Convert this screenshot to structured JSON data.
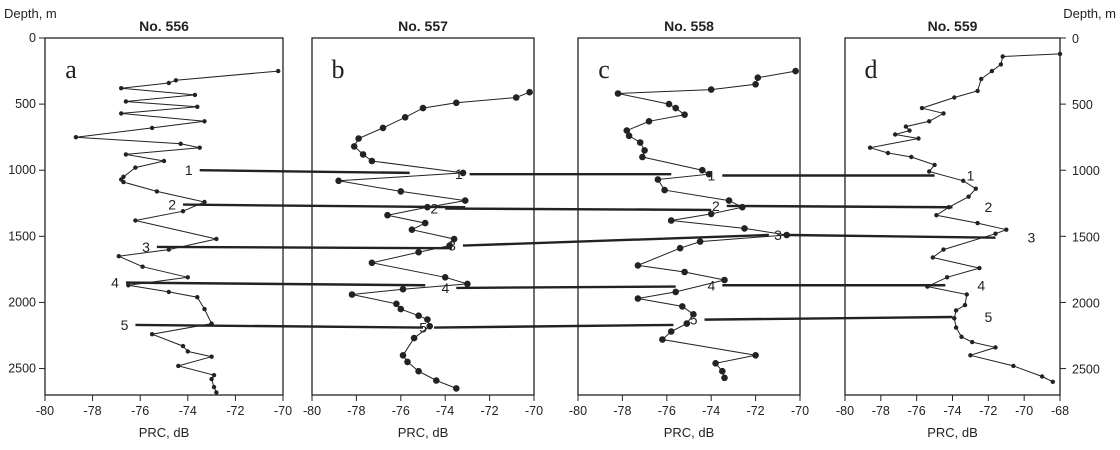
{
  "chart_data": {
    "type": "line",
    "y_axis": {
      "label": "Depth, m",
      "range": [
        0,
        2700
      ],
      "ticks": [
        0,
        500,
        1000,
        1500,
        2000,
        2500
      ],
      "inverted": true
    },
    "x_axis_label": "PRC, dB",
    "panels": [
      {
        "title": "No. 556",
        "letter": "a",
        "xlim": [
          -80,
          -70
        ],
        "xticks": [
          -80,
          -78,
          -76,
          -74,
          -72,
          -70
        ],
        "markers": "small",
        "points": [
          [
            -70.2,
            250
          ],
          [
            -74.5,
            320
          ],
          [
            -74.8,
            340
          ],
          [
            -76.8,
            380
          ],
          [
            -73.7,
            430
          ],
          [
            -76.6,
            480
          ],
          [
            -73.6,
            520
          ],
          [
            -76.8,
            570
          ],
          [
            -73.3,
            630
          ],
          [
            -75.5,
            680
          ],
          [
            -78.7,
            750
          ],
          [
            -74.3,
            800
          ],
          [
            -73.5,
            830
          ],
          [
            -76.6,
            880
          ],
          [
            -75.0,
            930
          ],
          [
            -76.2,
            980
          ],
          [
            -76.7,
            1050
          ],
          [
            -76.8,
            1070
          ],
          [
            -76.7,
            1090
          ],
          [
            -75.3,
            1160
          ],
          [
            -73.3,
            1240
          ],
          [
            -74.2,
            1310
          ],
          [
            -76.2,
            1380
          ],
          [
            -72.8,
            1520
          ],
          [
            -74.8,
            1600
          ],
          [
            -76.9,
            1650
          ],
          [
            -75.9,
            1730
          ],
          [
            -74.0,
            1810
          ],
          [
            -76.5,
            1870
          ],
          [
            -74.8,
            1920
          ],
          [
            -73.6,
            1960
          ],
          [
            -73.3,
            2050
          ],
          [
            -73.0,
            2160
          ],
          [
            -75.5,
            2240
          ],
          [
            -74.2,
            2330
          ],
          [
            -74.0,
            2370
          ],
          [
            -73.0,
            2410
          ],
          [
            -74.4,
            2480
          ],
          [
            -72.9,
            2550
          ],
          [
            -73.0,
            2580
          ],
          [
            -72.9,
            2640
          ],
          [
            -72.8,
            2680
          ]
        ]
      },
      {
        "title": "No. 557",
        "letter": "b",
        "xlim": [
          -80,
          -70
        ],
        "xticks": [
          -80,
          -78,
          -76,
          -74,
          -72,
          -70
        ],
        "markers": "large",
        "points": [
          [
            -70.2,
            410
          ],
          [
            -70.8,
            450
          ],
          [
            -73.5,
            490
          ],
          [
            -75.0,
            530
          ],
          [
            -75.8,
            600
          ],
          [
            -76.8,
            680
          ],
          [
            -77.9,
            760
          ],
          [
            -78.1,
            820
          ],
          [
            -77.7,
            880
          ],
          [
            -77.3,
            930
          ],
          [
            -73.2,
            1020
          ],
          [
            -78.8,
            1080
          ],
          [
            -76.0,
            1160
          ],
          [
            -73.1,
            1230
          ],
          [
            -74.8,
            1280
          ],
          [
            -76.6,
            1340
          ],
          [
            -74.9,
            1400
          ],
          [
            -75.5,
            1450
          ],
          [
            -73.6,
            1520
          ],
          [
            -73.8,
            1570
          ],
          [
            -75.2,
            1620
          ],
          [
            -77.3,
            1700
          ],
          [
            -74.0,
            1810
          ],
          [
            -73.0,
            1860
          ],
          [
            -75.9,
            1900
          ],
          [
            -78.2,
            1940
          ],
          [
            -76.2,
            2010
          ],
          [
            -76.0,
            2050
          ],
          [
            -75.2,
            2100
          ],
          [
            -74.8,
            2130
          ],
          [
            -74.7,
            2180
          ],
          [
            -75.4,
            2270
          ],
          [
            -75.9,
            2400
          ],
          [
            -75.7,
            2450
          ],
          [
            -75.2,
            2520
          ],
          [
            -74.4,
            2590
          ],
          [
            -73.5,
            2650
          ]
        ]
      },
      {
        "title": "No. 558",
        "letter": "c",
        "xlim": [
          -80,
          -70
        ],
        "xticks": [
          -80,
          -78,
          -76,
          -74,
          -72,
          -70
        ],
        "markers": "large",
        "points": [
          [
            -70.2,
            250
          ],
          [
            -71.9,
            300
          ],
          [
            -72.0,
            350
          ],
          [
            -74.0,
            390
          ],
          [
            -78.2,
            420
          ],
          [
            -75.9,
            500
          ],
          [
            -75.6,
            530
          ],
          [
            -75.2,
            580
          ],
          [
            -76.8,
            630
          ],
          [
            -77.8,
            700
          ],
          [
            -77.7,
            740
          ],
          [
            -77.2,
            790
          ],
          [
            -77.0,
            850
          ],
          [
            -77.1,
            900
          ],
          [
            -74.4,
            1000
          ],
          [
            -74.1,
            1030
          ],
          [
            -76.4,
            1070
          ],
          [
            -76.1,
            1150
          ],
          [
            -73.2,
            1230
          ],
          [
            -72.6,
            1280
          ],
          [
            -74.0,
            1330
          ],
          [
            -75.8,
            1380
          ],
          [
            -72.5,
            1440
          ],
          [
            -70.6,
            1490
          ],
          [
            -74.5,
            1540
          ],
          [
            -75.4,
            1590
          ],
          [
            -77.3,
            1720
          ],
          [
            -75.2,
            1770
          ],
          [
            -73.4,
            1830
          ],
          [
            -75.6,
            1920
          ],
          [
            -77.3,
            1970
          ],
          [
            -75.3,
            2030
          ],
          [
            -74.8,
            2090
          ],
          [
            -75.1,
            2160
          ],
          [
            -75.8,
            2220
          ],
          [
            -76.2,
            2280
          ],
          [
            -72.0,
            2400
          ],
          [
            -73.8,
            2460
          ],
          [
            -73.5,
            2520
          ],
          [
            -73.4,
            2570
          ]
        ]
      },
      {
        "title": "No. 559",
        "letter": "d",
        "xlim": [
          -80,
          -68
        ],
        "xticks": [
          -80,
          -78,
          -76,
          -74,
          -72,
          -70,
          -68
        ],
        "markers": "small",
        "points": [
          [
            -68.0,
            120
          ],
          [
            -71.2,
            140
          ],
          [
            -71.3,
            200
          ],
          [
            -71.8,
            250
          ],
          [
            -72.4,
            310
          ],
          [
            -72.6,
            400
          ],
          [
            -73.9,
            450
          ],
          [
            -75.7,
            530
          ],
          [
            -74.5,
            570
          ],
          [
            -75.3,
            630
          ],
          [
            -76.6,
            670
          ],
          [
            -76.4,
            700
          ],
          [
            -77.2,
            730
          ],
          [
            -75.9,
            760
          ],
          [
            -78.6,
            830
          ],
          [
            -77.6,
            870
          ],
          [
            -76.3,
            900
          ],
          [
            -75.0,
            960
          ],
          [
            -75.3,
            1010
          ],
          [
            -73.4,
            1080
          ],
          [
            -72.7,
            1140
          ],
          [
            -73.1,
            1200
          ],
          [
            -74.2,
            1280
          ],
          [
            -74.9,
            1340
          ],
          [
            -72.6,
            1400
          ],
          [
            -71.0,
            1450
          ],
          [
            -71.6,
            1480
          ],
          [
            -74.5,
            1600
          ],
          [
            -75.1,
            1660
          ],
          [
            -72.5,
            1740
          ],
          [
            -74.3,
            1810
          ],
          [
            -75.4,
            1880
          ],
          [
            -73.2,
            1940
          ],
          [
            -73.3,
            2020
          ],
          [
            -73.8,
            2060
          ],
          [
            -73.9,
            2120
          ],
          [
            -73.8,
            2190
          ],
          [
            -73.5,
            2260
          ],
          [
            -72.9,
            2300
          ],
          [
            -71.6,
            2340
          ],
          [
            -73.0,
            2400
          ],
          [
            -70.6,
            2480
          ],
          [
            -69.0,
            2560
          ],
          [
            -68.4,
            2600
          ]
        ]
      }
    ],
    "correlations": [
      {
        "label": "1",
        "segments": [
          [
            0,
            -73.5,
            1000,
            1,
            -75.6,
            1020
          ],
          [
            1,
            -72.9,
            1030,
            2,
            -75.8,
            1030
          ],
          [
            2,
            -73.5,
            1040,
            3,
            -75.0,
            1040
          ]
        ]
      },
      {
        "label": "2",
        "segments": [
          [
            0,
            -74.2,
            1260,
            1,
            -73.1,
            1280
          ],
          [
            1,
            -74.0,
            1290,
            2,
            -74.0,
            1300
          ],
          [
            2,
            -73.3,
            1270,
            3,
            -74.0,
            1280
          ]
        ]
      },
      {
        "label": "3",
        "segments": [
          [
            0,
            -75.3,
            1580,
            1,
            -73.7,
            1590
          ],
          [
            1,
            -73.2,
            1570,
            2,
            -71.4,
            1490
          ],
          [
            2,
            -70.5,
            1490,
            3,
            -71.6,
            1510
          ]
        ]
      },
      {
        "label": "4",
        "segments": [
          [
            0,
            -76.6,
            1850,
            1,
            -74.9,
            1870
          ],
          [
            1,
            -73.5,
            1890,
            2,
            -75.6,
            1880
          ],
          [
            2,
            -73.5,
            1870,
            3,
            -74.4,
            1870
          ]
        ]
      },
      {
        "label": "5",
        "segments": [
          [
            0,
            -76.2,
            2170,
            1,
            -75.0,
            2190
          ],
          [
            1,
            -74.5,
            2190,
            2,
            -75.7,
            2170
          ],
          [
            2,
            -74.3,
            2130,
            3,
            -74.0,
            2110
          ]
        ]
      }
    ]
  }
}
